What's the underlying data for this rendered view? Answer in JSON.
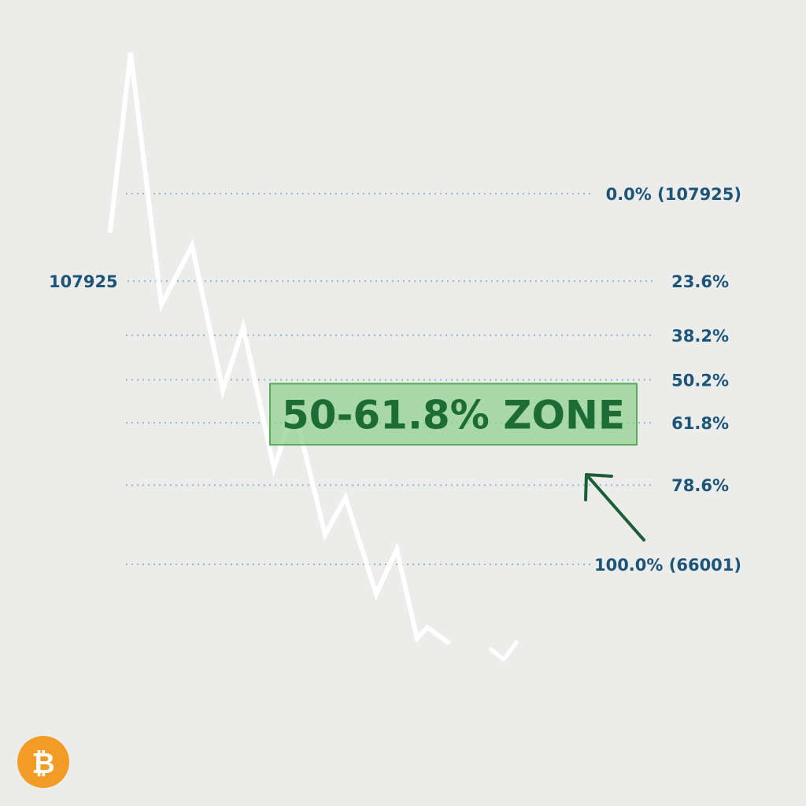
{
  "chart_data": {
    "type": "line",
    "high_label": "107925",
    "price_path": [
      {
        "x": 0,
        "y": 0.1
      },
      {
        "x": 2,
        "y": -0.38
      },
      {
        "x": 5,
        "y": 0.3
      },
      {
        "x": 8,
        "y": 0.14
      },
      {
        "x": 11,
        "y": 0.53
      },
      {
        "x": 13,
        "y": 0.36
      },
      {
        "x": 16,
        "y": 0.74
      },
      {
        "x": 18,
        "y": 0.58
      },
      {
        "x": 21,
        "y": 0.92
      },
      {
        "x": 23,
        "y": 0.82
      },
      {
        "x": 26,
        "y": 1.08
      },
      {
        "x": 28,
        "y": 0.96
      },
      {
        "x": 30,
        "y": 1.2
      },
      {
        "x": 31,
        "y": 1.17
      },
      {
        "x": 33,
        "y": 1.21
      }
    ],
    "fib_levels": [
      {
        "ratio": 0.0,
        "label": "0.0% (107925)"
      },
      {
        "ratio": 0.236,
        "label": "23.6%"
      },
      {
        "ratio": 0.382,
        "label": "38.2%"
      },
      {
        "ratio": 0.502,
        "label": "50.2%"
      },
      {
        "ratio": 0.618,
        "label": "61.8%"
      },
      {
        "ratio": 0.786,
        "label": "78.6%"
      },
      {
        "ratio": 1.0,
        "label": "100.0% (66001)"
      }
    ],
    "zone": {
      "from_ratio": 0.502,
      "to_ratio": 0.618,
      "label": "50-61.8% ZONE"
    },
    "colors": {
      "background": "#ececeb",
      "price_line": "#ffffff",
      "level_line": "#8fbad3",
      "level_text": "#1d5578",
      "zone_fill": "#8ed08e",
      "zone_border": "#5aab5a",
      "zone_text": "#1d6b35",
      "arrow": "#1d5e38",
      "bitcoin": "#f29c25"
    }
  },
  "icons": {
    "bitcoin": {
      "name": "bitcoin-logo-icon",
      "glyph": "₿"
    },
    "down_arrow": {
      "name": "chevron-down-icon"
    },
    "pointer_arrow": {
      "name": "arrow-up-left-icon"
    }
  }
}
